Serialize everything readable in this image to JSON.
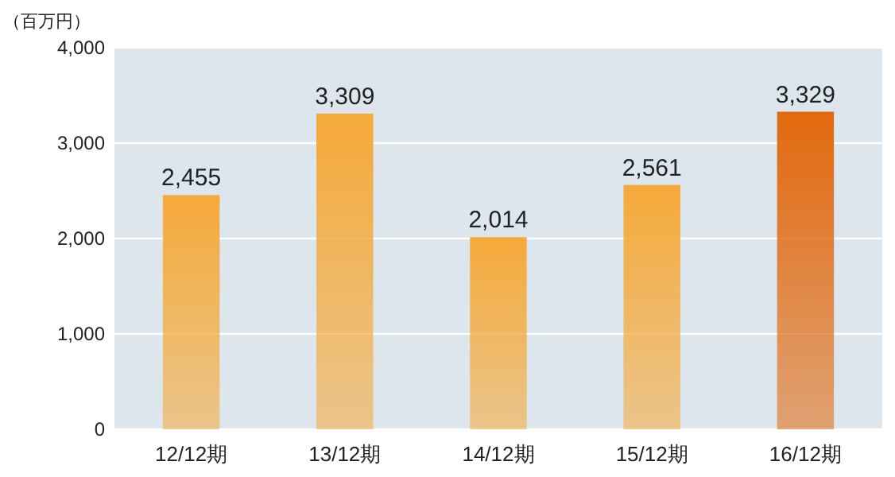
{
  "chart_data": {
    "type": "bar",
    "ylabel": "（百万円）",
    "categories": [
      "12/12期",
      "13/12期",
      "14/12期",
      "15/12期",
      "16/12期"
    ],
    "values": [
      2455,
      3309,
      2014,
      2561,
      3329
    ],
    "colors": [
      "#f5a93a",
      "#f5a93a",
      "#f5a93a",
      "#f5a93a",
      "#e2690f"
    ],
    "ylim": [
      0,
      4000
    ],
    "yticks": [
      0,
      {
        "value": 1000,
        "label": "1,000"
      },
      {
        "value": 2000,
        "label": "2,000"
      },
      {
        "value": 3000,
        "label": "3,000"
      },
      {
        "value": 4000,
        "label": "4,000"
      }
    ],
    "grid": "y",
    "value_labels": [
      "2,455",
      "3,309",
      "2,014",
      "2,561",
      "3,329"
    ]
  }
}
